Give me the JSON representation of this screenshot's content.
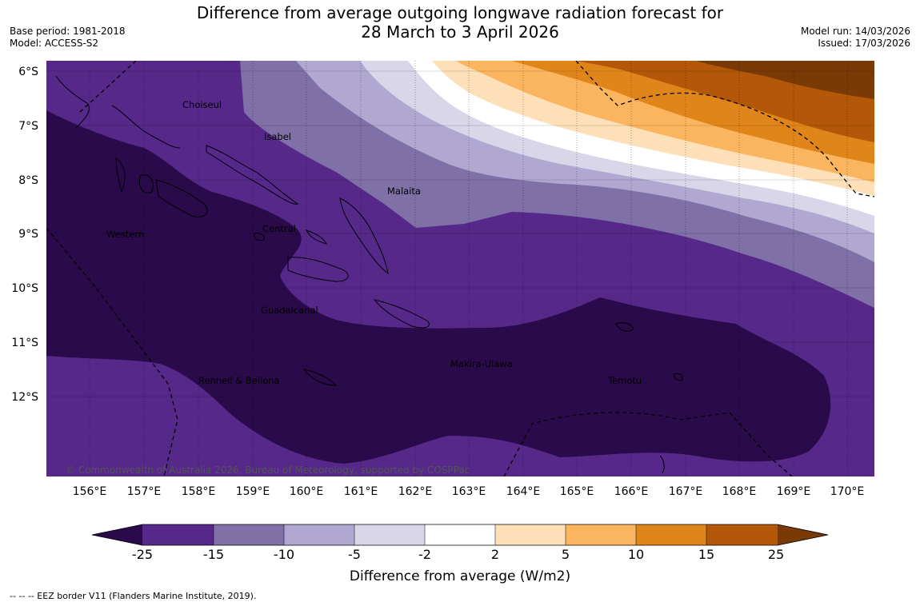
{
  "header": {
    "title_line1": "Difference from average outgoing longwave radiation forecast for",
    "title_line2": "28 March to 3 April 2026",
    "base_period": "Base period: 1981-2018",
    "model": "Model: ACCESS-S2",
    "model_run": "Model run: 14/03/2026",
    "issued": "Issued: 17/03/2026"
  },
  "map": {
    "longitudes": [
      "156°E",
      "157°E",
      "158°E",
      "159°E",
      "160°E",
      "161°E",
      "162°E",
      "163°E",
      "164°E",
      "165°E",
      "166°E",
      "167°E",
      "168°E",
      "169°E",
      "170°E"
    ],
    "latitudes": [
      "6°S",
      "7°S",
      "8°S",
      "9°S",
      "10°S",
      "11°S",
      "12°S"
    ],
    "places": [
      "Choiseul",
      "Isabel",
      "Malaita",
      "Western",
      "Central",
      "Guadalcanal",
      "Makira-Ulawa",
      "Rennell & Bellona",
      "Temotu"
    ],
    "copyright": "© Commonwealth of Australia 2026, Bureau of Meteorology, supported by COSPPac"
  },
  "colorbar": {
    "ticks": [
      "-25",
      "-15",
      "-10",
      "-5",
      "-2",
      "2",
      "5",
      "10",
      "15",
      "25"
    ],
    "colors": [
      "#2a0a4a",
      "#55288a",
      "#8070a8",
      "#b0a8d0",
      "#d8d6e8",
      "#ffffff",
      "#fde0b8",
      "#fbb55f",
      "#e0851a",
      "#b25808",
      "#7a3a06"
    ],
    "label": "Difference from average (W/m2)"
  },
  "footer": {
    "eez_note": "--  --  -- EEZ border V11 (Flanders Marine Institute, 2019)."
  }
}
